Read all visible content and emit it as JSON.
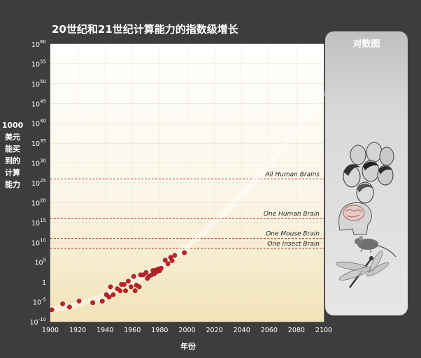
{
  "chart_data": {
    "type": "scatter",
    "title": "20世纪和21世纪计算能力的指数级增长",
    "xlabel": "年份",
    "ylabel_lines": [
      "1000",
      "美元",
      "能买",
      "到的",
      "计算",
      "能力"
    ],
    "xlim": [
      1900,
      2100
    ],
    "ylim_exp": [
      -10,
      60
    ],
    "x_ticks": [
      "1900",
      "1920",
      "1940",
      "1960",
      "1980",
      "2000",
      "2020",
      "2040",
      "2060",
      "2080",
      "2100"
    ],
    "y_ticks": [
      {
        "base": "10",
        "exp": "60"
      },
      {
        "base": "10",
        "exp": "55"
      },
      {
        "base": "10",
        "exp": "50"
      },
      {
        "base": "10",
        "exp": "45"
      },
      {
        "base": "10",
        "exp": "40"
      },
      {
        "base": "10",
        "exp": "35"
      },
      {
        "base": "10",
        "exp": "30"
      },
      {
        "base": "10",
        "exp": "25"
      },
      {
        "base": "10",
        "exp": "20"
      },
      {
        "base": "10",
        "exp": "15"
      },
      {
        "base": "10",
        "exp": "10"
      },
      {
        "base": "10",
        "exp": "5"
      },
      {
        "base": "1",
        "exp": ""
      },
      {
        "base": "10",
        "exp": "-5"
      },
      {
        "base": "10",
        "exp": "-10"
      }
    ],
    "y_scale": "log",
    "grid": true,
    "data_points": [
      {
        "x": 1901,
        "y_exp": -7
      },
      {
        "x": 1909,
        "y_exp": -5.5
      },
      {
        "x": 1914,
        "y_exp": -6.3
      },
      {
        "x": 1921,
        "y_exp": -4.8
      },
      {
        "x": 1931,
        "y_exp": -5.2
      },
      {
        "x": 1938,
        "y_exp": -4.8
      },
      {
        "x": 1941,
        "y_exp": -3.2
      },
      {
        "x": 1943,
        "y_exp": -3.8
      },
      {
        "x": 1944,
        "y_exp": -1.2
      },
      {
        "x": 1946,
        "y_exp": -3.2
      },
      {
        "x": 1949,
        "y_exp": -1.7
      },
      {
        "x": 1951,
        "y_exp": -2.2
      },
      {
        "x": 1952,
        "y_exp": -0.6
      },
      {
        "x": 1954,
        "y_exp": -0.6
      },
      {
        "x": 1955,
        "y_exp": -2.2
      },
      {
        "x": 1957,
        "y_exp": 0.2
      },
      {
        "x": 1959,
        "y_exp": -1.2
      },
      {
        "x": 1961,
        "y_exp": 1.4
      },
      {
        "x": 1962,
        "y_exp": -2.2
      },
      {
        "x": 1963,
        "y_exp": -0.8
      },
      {
        "x": 1965,
        "y_exp": -1.2
      },
      {
        "x": 1966,
        "y_exp": 1.8
      },
      {
        "x": 1968,
        "y_exp": 1.8
      },
      {
        "x": 1970,
        "y_exp": 2.4
      },
      {
        "x": 1971,
        "y_exp": 0.9
      },
      {
        "x": 1972,
        "y_exp": 1.4
      },
      {
        "x": 1974,
        "y_exp": 1.8
      },
      {
        "x": 1975,
        "y_exp": 2.9
      },
      {
        "x": 1976,
        "y_exp": 2.1
      },
      {
        "x": 1977,
        "y_exp": 3.0
      },
      {
        "x": 1978,
        "y_exp": 2.6
      },
      {
        "x": 1979,
        "y_exp": 3.3
      },
      {
        "x": 1980,
        "y_exp": 2.9
      },
      {
        "x": 1981,
        "y_exp": 3.5
      },
      {
        "x": 1984,
        "y_exp": 5.5
      },
      {
        "x": 1986,
        "y_exp": 4.6
      },
      {
        "x": 1988,
        "y_exp": 6.2
      },
      {
        "x": 1989,
        "y_exp": 5.4
      },
      {
        "x": 1991,
        "y_exp": 6.7
      },
      {
        "x": 1998,
        "y_exp": 7.4
      }
    ],
    "trend_curve": {
      "style": "dashed-white",
      "from_x": 1900,
      "to_x": 2100
    },
    "reference_lines": [
      {
        "label": "All Human Brains",
        "y_exp": 26
      },
      {
        "label": "One Human Brain",
        "y_exp": 16
      },
      {
        "label": "One Mouse Brain",
        "y_exp": 11
      },
      {
        "label": "One Insect Brain",
        "y_exp": 8.5
      }
    ],
    "reference_line_color": "#b5262a",
    "point_color": "#c0222a",
    "side_panel_title": "对数图"
  },
  "side_icons": [
    "human-heads-icon",
    "human-brain-icon",
    "mouse-icon",
    "dragonfly-icon"
  ]
}
